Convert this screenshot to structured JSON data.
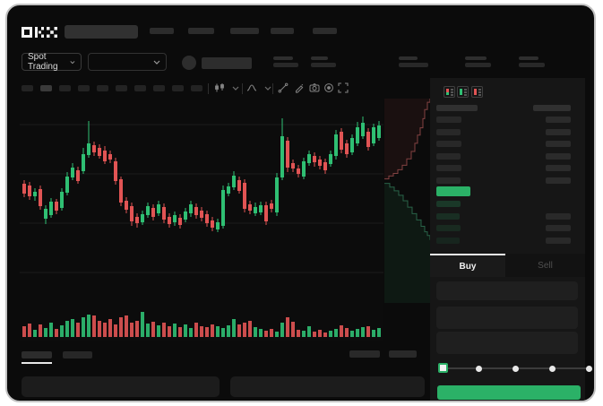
{
  "window": {
    "background": "#0b0b0b",
    "frame_border": "#c2c2c2"
  },
  "colors": {
    "up_green": "#2fbf73",
    "down_red": "#e15454",
    "accent_green": "#2bb167",
    "placeholder": "#2c2c2c",
    "grid": "#1c1c1c"
  },
  "topbar": {
    "logo": "OKX",
    "nav_placeholders": 5,
    "has_search_placeholder": true
  },
  "market_row": {
    "market_selector_label": "Spot Trading",
    "pair_dropdown_value": "",
    "stat_placeholders": 5
  },
  "chart_toolbar": {
    "timeframe_placeholders": 10,
    "active_timeframe_index": 1,
    "icons": [
      "chart-type",
      "chevron-down",
      "indicators",
      "chevron-down",
      "line-tools",
      "draw",
      "camera",
      "settings",
      "fullscreen"
    ]
  },
  "orderbook": {
    "view_icons": [
      "book-both",
      "book-bids",
      "book-asks"
    ],
    "ask_rows": 6,
    "bid_rows": 4,
    "bid_row_alphas": [
      0.22,
      0.16,
      0.13,
      0.1
    ],
    "last_price_color": "#2bb167"
  },
  "trade_panel": {
    "tabs": [
      {
        "label": "Buy",
        "active": true
      },
      {
        "label": "Sell",
        "active": false
      }
    ],
    "input_placeholders": 3,
    "slider": {
      "stops": 5,
      "active_stop": 0
    },
    "submit_button_color": "#2bb167"
  },
  "bottom_bar": {
    "tab_placeholders": 2,
    "active_tab_index": 0,
    "action_placeholders": 2,
    "panel_placeholders": 2
  },
  "chart_data": {
    "type": "candlestick",
    "title": "",
    "xlabel": "",
    "ylabel": "",
    "x_count": 67,
    "price_units": "normalized (0 = chart bottom, 220 = chart top)",
    "grid_levels": [
      193,
      138,
      83,
      28
    ],
    "series": [
      {
        "name": "OHLC",
        "candles": [
          [
            127,
            131,
            112,
            116
          ],
          [
            125,
            129,
            109,
            113
          ],
          [
            113,
            122,
            108,
            118
          ],
          [
            121,
            125,
            98,
            102
          ],
          [
            88,
            103,
            82,
            99
          ],
          [
            92,
            111,
            89,
            107
          ],
          [
            107,
            110,
            93,
            97
          ],
          [
            100,
            122,
            97,
            118
          ],
          [
            117,
            140,
            114,
            135
          ],
          [
            134,
            150,
            131,
            145
          ],
          [
            142,
            146,
            127,
            130
          ],
          [
            141,
            167,
            138,
            160
          ],
          [
            159,
            197,
            156,
            172
          ],
          [
            170,
            174,
            158,
            162
          ],
          [
            167,
            171,
            155,
            158
          ],
          [
            164,
            169,
            149,
            152
          ],
          [
            160,
            164,
            150,
            154
          ],
          [
            152,
            156,
            126,
            130
          ],
          [
            132,
            135,
            102,
            106
          ],
          [
            108,
            112,
            94,
            98
          ],
          [
            102,
            106,
            80,
            85
          ],
          [
            90,
            94,
            78,
            83
          ],
          [
            84,
            97,
            81,
            93
          ],
          [
            92,
            106,
            89,
            102
          ],
          [
            100,
            104,
            86,
            90
          ],
          [
            94,
            108,
            91,
            104
          ],
          [
            101,
            105,
            83,
            87
          ],
          [
            90,
            94,
            78,
            82
          ],
          [
            84,
            96,
            80,
            92
          ],
          [
            89,
            93,
            77,
            81
          ],
          [
            87,
            100,
            84,
            96
          ],
          [
            94,
            108,
            90,
            104
          ],
          [
            101,
            105,
            88,
            92
          ],
          [
            97,
            101,
            85,
            89
          ],
          [
            93,
            97,
            79,
            83
          ],
          [
            86,
            90,
            74,
            78
          ],
          [
            76,
            88,
            73,
            84
          ],
          [
            80,
            125,
            77,
            120
          ],
          [
            116,
            128,
            113,
            124
          ],
          [
            123,
            141,
            120,
            136
          ],
          [
            131,
            135,
            116,
            119
          ],
          [
            128,
            132,
            95,
            99
          ],
          [
            104,
            108,
            93,
            97
          ],
          [
            94,
            106,
            91,
            101
          ],
          [
            95,
            107,
            92,
            103
          ],
          [
            103,
            107,
            81,
            85
          ],
          [
            105,
            109,
            95,
            99
          ],
          [
            95,
            139,
            91,
            134
          ],
          [
            134,
            200,
            131,
            180
          ],
          [
            175,
            179,
            140,
            145
          ],
          [
            150,
            154,
            140,
            144
          ],
          [
            144,
            148,
            134,
            138
          ],
          [
            135,
            156,
            132,
            152
          ],
          [
            150,
            164,
            147,
            160
          ],
          [
            158,
            162,
            146,
            151
          ],
          [
            154,
            158,
            143,
            147
          ],
          [
            151,
            155,
            138,
            142
          ],
          [
            149,
            164,
            146,
            160
          ],
          [
            158,
            187,
            154,
            182
          ],
          [
            185,
            189,
            161,
            165
          ],
          [
            172,
            176,
            156,
            160
          ],
          [
            162,
            182,
            159,
            178
          ],
          [
            172,
            196,
            169,
            190
          ],
          [
            180,
            202,
            177,
            195
          ],
          [
            185,
            189,
            164,
            168
          ],
          [
            172,
            194,
            169,
            190
          ],
          [
            178,
            197,
            175,
            192
          ]
        ]
      },
      {
        "name": "Volume",
        "values": [
          12,
          15,
          8,
          14,
          10,
          16,
          9,
          13,
          18,
          20,
          16,
          22,
          25,
          24,
          18,
          16,
          20,
          14,
          22,
          24,
          16,
          18,
          28,
          15,
          17,
          13,
          16,
          12,
          15,
          11,
          14,
          10,
          16,
          12,
          11,
          14,
          12,
          10,
          13,
          20,
          14,
          16,
          18,
          11,
          9,
          7,
          9,
          6,
          16,
          22,
          17,
          8,
          7,
          12,
          6,
          8,
          5,
          7,
          9,
          13,
          10,
          7,
          9,
          11,
          12,
          8,
          10
        ]
      }
    ],
    "depth": {
      "asks": [
        [
          0,
          0.393
        ],
        [
          0.098,
          0.379
        ],
        [
          0.196,
          0.366
        ],
        [
          0.294,
          0.348
        ],
        [
          0.392,
          0.326
        ],
        [
          0.49,
          0.295
        ],
        [
          0.588,
          0.259
        ],
        [
          0.667,
          0.219
        ],
        [
          0.725,
          0.179
        ],
        [
          0.784,
          0.143
        ],
        [
          0.843,
          0.098
        ],
        [
          0.882,
          0.054
        ],
        [
          0.941,
          0.018
        ],
        [
          1,
          0.0
        ]
      ],
      "bids": [
        [
          0,
          0.415
        ],
        [
          0.118,
          0.433
        ],
        [
          0.216,
          0.451
        ],
        [
          0.314,
          0.473
        ],
        [
          0.412,
          0.5
        ],
        [
          0.51,
          0.531
        ],
        [
          0.608,
          0.563
        ],
        [
          0.706,
          0.594
        ],
        [
          0.804,
          0.625
        ],
        [
          0.882,
          0.652
        ],
        [
          0.941,
          0.67
        ],
        [
          1,
          0.692
        ]
      ]
    },
    "legend": false,
    "grid": true
  }
}
